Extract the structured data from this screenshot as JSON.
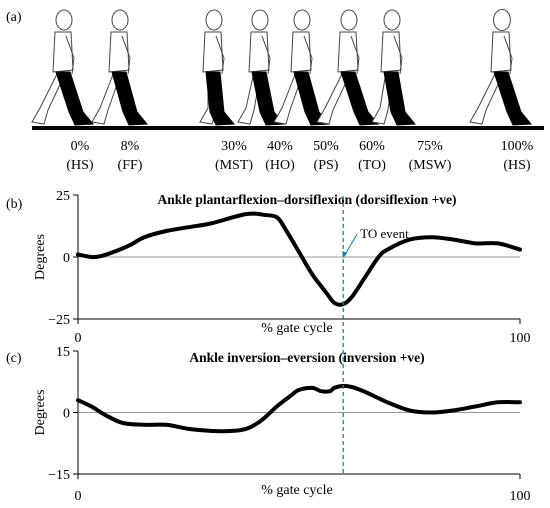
{
  "panel_a": {
    "label": "(a)",
    "phases": [
      {
        "pct": "0%",
        "abbr": "(HS)",
        "at": 0
      },
      {
        "pct": "8%",
        "abbr": "(FF)",
        "at": 8
      },
      {
        "pct": "30%",
        "abbr": "(MST)",
        "at": 30
      },
      {
        "pct": "40%",
        "abbr": "(HO)",
        "at": 40
      },
      {
        "pct": "50%",
        "abbr": "(PS)",
        "at": 50
      },
      {
        "pct": "60%",
        "abbr": "(TO)",
        "at": 60
      },
      {
        "pct": "75%",
        "abbr": "(MSW)",
        "at": 75
      },
      {
        "pct": "100%",
        "abbr": "(HS)",
        "at": 100
      }
    ]
  },
  "to_event": {
    "label": "TO event",
    "x": 60,
    "color": "#1f77b4"
  },
  "chart_data": [
    {
      "type": "line",
      "panel_label": "(b)",
      "title": "Ankle plantarflexion–dorsiflexion (dorsiflexion +ve)",
      "xlabel": "% gate cycle",
      "ylabel": "Degrees",
      "xlim": [
        0,
        100
      ],
      "ylim": [
        -25,
        25
      ],
      "xticks": [
        "0",
        "100"
      ],
      "yticks": [
        "25",
        "0",
        "−25"
      ],
      "grid": false,
      "zero_line": true,
      "series": [
        {
          "color": "#000000",
          "x": [
            0,
            3,
            5,
            8,
            12,
            15,
            20,
            25,
            30,
            35,
            38,
            40,
            42,
            45,
            47,
            50,
            53,
            56,
            58,
            60,
            62,
            65,
            68,
            70,
            75,
            80,
            85,
            90,
            95,
            100
          ],
          "y": [
            1,
            0,
            0.3,
            2,
            5,
            8,
            10.5,
            12,
            13.5,
            16,
            17.3,
            17.5,
            17,
            16,
            11,
            2,
            -7,
            -14,
            -18.5,
            -19,
            -16,
            -8,
            0,
            3,
            7,
            8,
            7,
            5.5,
            5.5,
            3
          ]
        }
      ]
    },
    {
      "type": "line",
      "panel_label": "(c)",
      "title": "Ankle inversion–eversion (inversion +ve)",
      "xlabel": "% gate cycle",
      "ylabel": "Degrees",
      "xlim": [
        0,
        100
      ],
      "ylim": [
        -15,
        15
      ],
      "xticks": [
        "0",
        "100"
      ],
      "yticks": [
        "15",
        "0",
        "−15"
      ],
      "grid": false,
      "zero_line": true,
      "series": [
        {
          "color": "#000000",
          "x": [
            0,
            3,
            6,
            10,
            15,
            20,
            25,
            30,
            35,
            38,
            40,
            42,
            45,
            48,
            50,
            53,
            55,
            57,
            58,
            60,
            62,
            65,
            70,
            75,
            80,
            85,
            90,
            95,
            100
          ],
          "y": [
            3,
            1.5,
            -0.5,
            -2.5,
            -3,
            -3,
            -4,
            -4.5,
            -4.5,
            -4,
            -3,
            -1.5,
            1.5,
            4,
            5.5,
            6,
            5.2,
            5.2,
            6,
            6.5,
            6.2,
            5,
            2.5,
            0.5,
            0,
            0.5,
            1.5,
            2.5,
            2.5
          ]
        }
      ]
    }
  ]
}
